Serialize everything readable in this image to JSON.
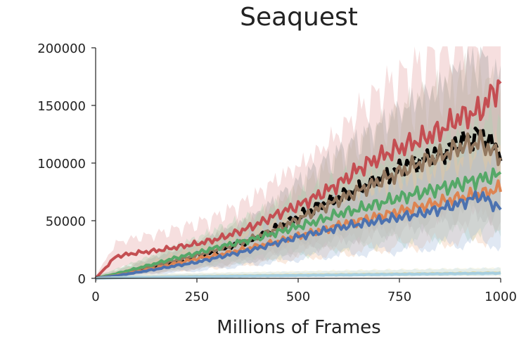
{
  "chart_data": {
    "type": "line",
    "title": "Seaquest",
    "xlabel": "Millions of Frames",
    "ylabel": "",
    "xlim": [
      0,
      1000
    ],
    "ylim": [
      0,
      200000
    ],
    "xticks": [
      0,
      250,
      500,
      750,
      1000
    ],
    "xtick_labels": [
      "0",
      "250",
      "500",
      "750",
      "1000"
    ],
    "yticks": [
      0,
      50000,
      100000,
      150000,
      200000
    ],
    "ytick_labels": [
      "0",
      "50000",
      "100000",
      "150000",
      "200000"
    ],
    "grid": false,
    "legend": "none",
    "x": [
      0,
      50,
      100,
      150,
      200,
      250,
      300,
      350,
      400,
      450,
      500,
      550,
      600,
      650,
      700,
      750,
      800,
      850,
      900,
      950,
      1000
    ],
    "series": [
      {
        "color": "#c44e52",
        "style": "solid",
        "band_color": "#e6a3a3",
        "values": [
          0,
          19000,
          22000,
          24000,
          27000,
          30000,
          34000,
          40000,
          47000,
          56000,
          63000,
          72000,
          82000,
          95000,
          105000,
          113000,
          120000,
          128000,
          140000,
          145000,
          170000
        ]
      },
      {
        "color": "#000000",
        "style": "dashed",
        "band_color": "#9a9a9a",
        "values": [
          0,
          3000,
          7000,
          11000,
          15000,
          19000,
          24000,
          29000,
          35000,
          44000,
          53000,
          62000,
          70000,
          78000,
          86000,
          95000,
          102000,
          108000,
          118000,
          125000,
          110000
        ]
      },
      {
        "color": "#937860",
        "style": "solid",
        "band_color": "#c7b4a2",
        "values": [
          0,
          3500,
          7500,
          11500,
          15500,
          20000,
          25000,
          30000,
          36000,
          43000,
          51000,
          60000,
          68000,
          76000,
          84000,
          92000,
          100000,
          106000,
          114000,
          118000,
          105000
        ]
      },
      {
        "color": "#55a868",
        "style": "solid",
        "band_color": "#a9d4b2",
        "values": [
          0,
          4000,
          8500,
          13000,
          18000,
          22000,
          27000,
          31000,
          35000,
          40000,
          45000,
          50000,
          56000,
          60000,
          65000,
          70000,
          74000,
          78000,
          82000,
          86000,
          90000
        ]
      },
      {
        "color": "#dd8452",
        "style": "solid",
        "band_color": "#f0c2a3",
        "values": [
          0,
          2500,
          5500,
          9000,
          13000,
          17000,
          20000,
          24000,
          28000,
          32000,
          37000,
          41000,
          46000,
          50000,
          54000,
          58000,
          62000,
          66000,
          70000,
          73000,
          78000
        ]
      },
      {
        "color": "#4c72b0",
        "style": "solid",
        "band_color": "#a6bcdc",
        "values": [
          0,
          2200,
          5000,
          8000,
          11000,
          14000,
          18000,
          22000,
          26000,
          31000,
          36000,
          40000,
          44000,
          47000,
          50000,
          53000,
          56000,
          60000,
          65000,
          72000,
          60000
        ]
      },
      {
        "color": "#dbd6a6",
        "style": "solid",
        "band_color": "#e8e4c0",
        "values": [
          0,
          600,
          900,
          1200,
          1500,
          1800,
          2000,
          2200,
          2400,
          2600,
          2800,
          3000,
          3200,
          3400,
          3600,
          3800,
          4000,
          4200,
          4400,
          4600,
          4800
        ]
      },
      {
        "color": "#a7cfe0",
        "style": "solid",
        "band_color": "#bfdcea",
        "values": [
          0,
          500,
          800,
          1000,
          1300,
          1500,
          1700,
          1900,
          2100,
          2300,
          2500,
          2700,
          2900,
          3100,
          3300,
          3500,
          3700,
          3900,
          4100,
          4300,
          4500
        ]
      }
    ]
  }
}
